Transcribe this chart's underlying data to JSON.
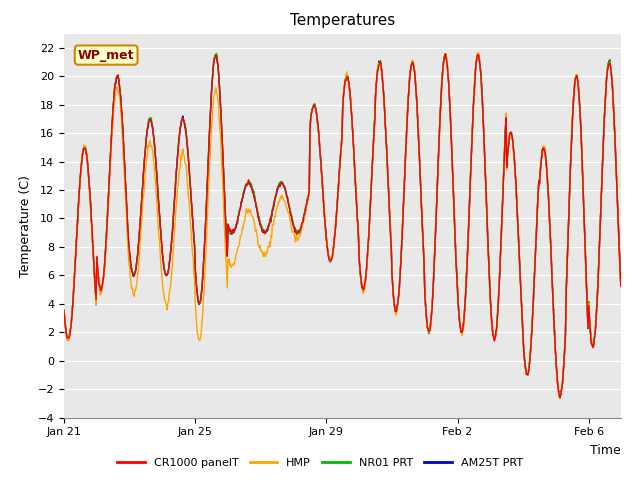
{
  "title": "Temperatures",
  "xlabel": "Time",
  "ylabel": "Temperature (C)",
  "ylim": [
    -4,
    23
  ],
  "yticks": [
    -4,
    -2,
    0,
    2,
    4,
    6,
    8,
    10,
    12,
    14,
    16,
    18,
    20,
    22
  ],
  "xtick_labels": [
    "Jan 21",
    "Jan 25",
    "Jan 29",
    "Feb 2",
    "Feb 6"
  ],
  "bg_outer": "#ffffff",
  "bg_inner": "#e8e8e8",
  "legend_labels": [
    "CR1000 panelT",
    "HMP",
    "NR01 PRT",
    "AM25T PRT"
  ],
  "legend_colors": [
    "#ff0000",
    "#ffa500",
    "#00bb00",
    "#0000cc"
  ],
  "watermark_text": "WP_met",
  "watermark_bg": "#ffffcc",
  "watermark_border": "#cc8800"
}
